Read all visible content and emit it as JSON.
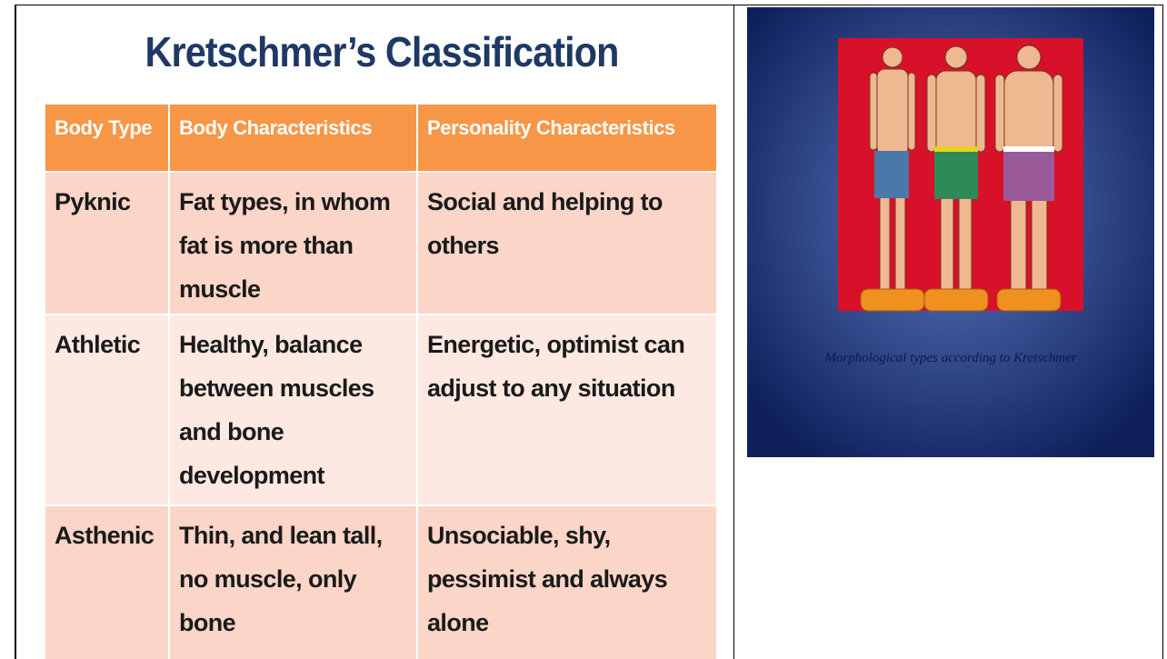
{
  "slide": {
    "title": "Kretschmer’s Classification",
    "table": {
      "header": [
        "Body Type",
        "Body Characteristics",
        "Personality Characteristics"
      ],
      "rows": [
        [
          "Pyknic",
          "Fat types, in whom fat is more than muscle",
          "Social and helping to others"
        ],
        [
          "Athletic",
          "Healthy, balance between muscles and bone development",
          "Energetic, optimist can adjust to any situation"
        ],
        [
          "Asthenic",
          "Thin, and lean tall, no muscle, only bone",
          "Unsociable, shy, pessimist and always alone"
        ]
      ]
    }
  },
  "figure": {
    "caption": "Morphological types according to Kretschmer"
  }
}
